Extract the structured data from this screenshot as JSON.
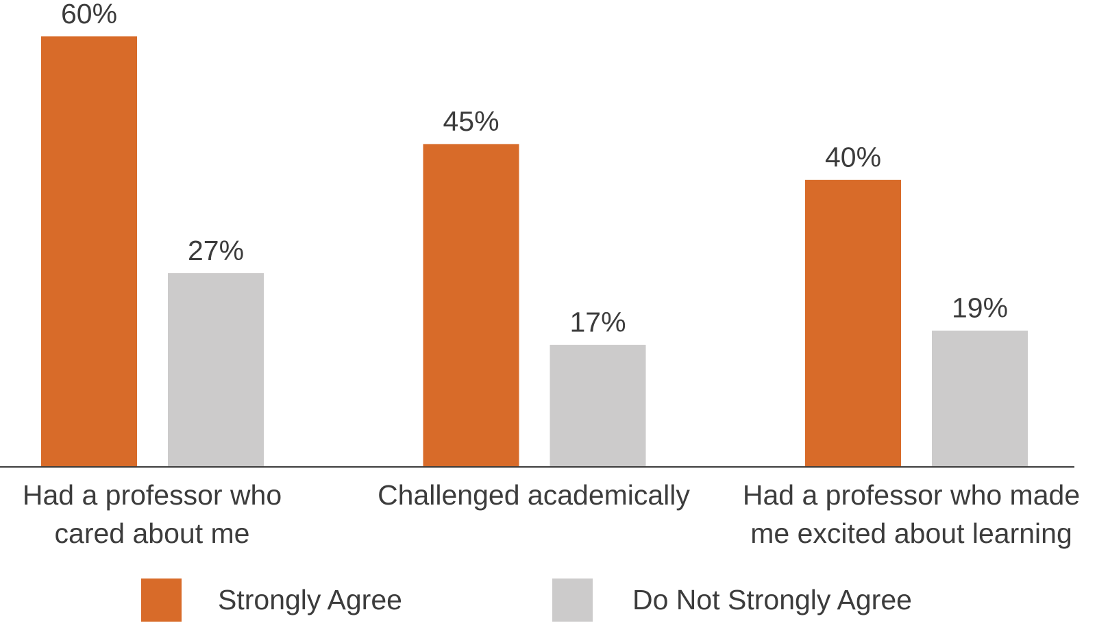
{
  "chart_data": {
    "type": "bar",
    "categories": [
      "Had a professor who\ncared about me",
      "Challenged academically",
      "Had a professor who made\nme excited about learning"
    ],
    "series": [
      {
        "name": "Strongly Agree",
        "color": "#d86b29",
        "values": [
          60,
          45,
          40
        ],
        "value_labels": [
          "60%",
          "45%",
          "40%"
        ]
      },
      {
        "name": "Do Not Strongly Agree",
        "color": "#cccbcb",
        "values": [
          27,
          17,
          19
        ],
        "value_labels": [
          "27%",
          "17%",
          "19%"
        ]
      }
    ]
  }
}
